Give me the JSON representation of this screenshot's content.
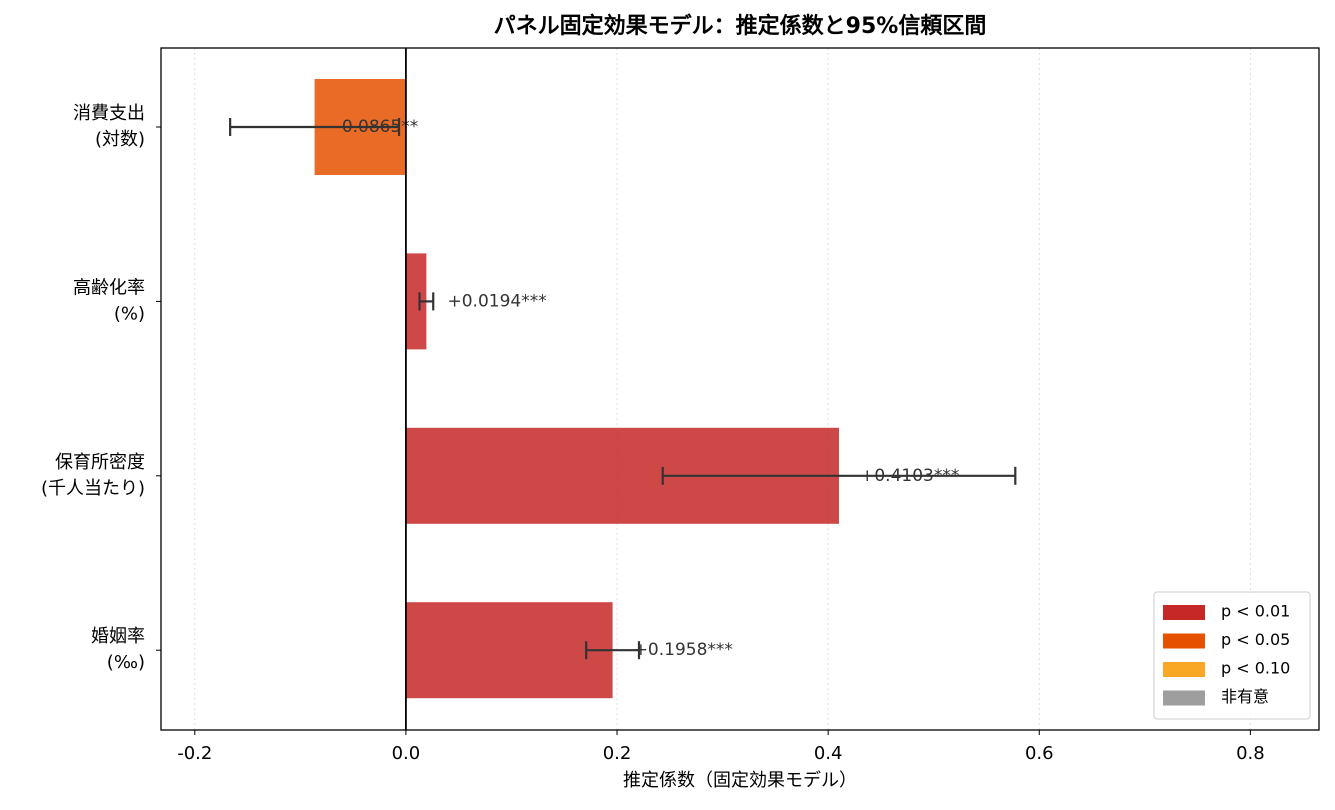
{
  "chart_data": {
    "type": "barh",
    "title": "パネル固定効果モデル：推定係数と95%信頼区間",
    "xlabel": "推定係数（固定効果モデル）",
    "categories": [
      "消費支出\n(対数)",
      "高齢化率\n(%)",
      "保育所密度\n(千人当たり)",
      "婚姻率\n(‰)"
    ],
    "values": [
      -0.0865,
      0.0194,
      0.4103,
      0.1958
    ],
    "value_labels": [
      "-0.0865**",
      "+0.0194***",
      "+0.4103***",
      "+0.1958***"
    ],
    "errors": [
      0.08,
      0.0065,
      0.167,
      0.025
    ],
    "colors": [
      "#e65100",
      "#c62828",
      "#c62828",
      "#c62828"
    ],
    "xlim": [
      -0.232,
      0.865
    ],
    "xticks": [
      -0.2,
      {
        "value": 0,
        "label": "0.0"
      },
      0.2,
      0.4,
      0.6,
      0.8
    ],
    "grid": true,
    "legend_position": "lower right",
    "legend": [
      {
        "name": "p < 0.01",
        "color": "#c62828"
      },
      {
        "name": "p < 0.05",
        "color": "#e65100"
      },
      {
        "name": "p < 0.10",
        "color": "#f9a825"
      },
      {
        "name": "非有意",
        "color": "#9e9e9e"
      }
    ]
  }
}
